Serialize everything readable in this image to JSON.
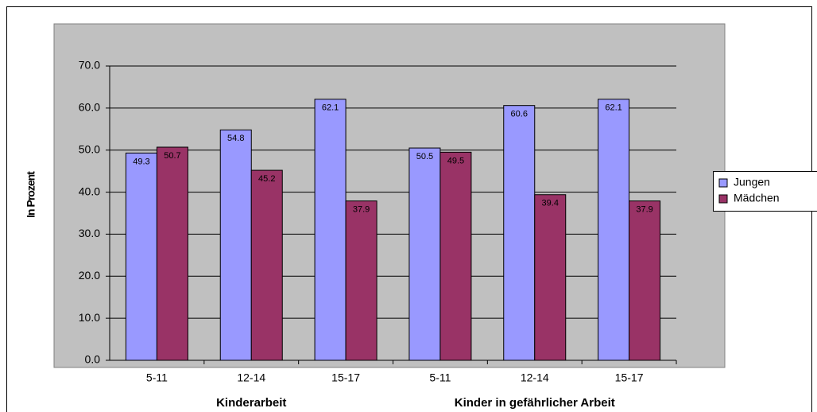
{
  "chart_data": {
    "type": "bar",
    "y_label": "In Prozent",
    "categories": [
      "5-11",
      "12-14",
      "15-17",
      "5-11",
      "12-14",
      "15-17"
    ],
    "group_labels": [
      "Kinderarbeit",
      "Kinder in gefährlicher Arbeit"
    ],
    "series": [
      {
        "name": "Jungen",
        "color": "#9999ff",
        "values": [
          49.3,
          54.8,
          62.1,
          50.5,
          60.6,
          62.1
        ]
      },
      {
        "name": "Mädchen",
        "color": "#993366",
        "values": [
          50.7,
          45.2,
          37.9,
          49.5,
          39.4,
          37.9
        ]
      }
    ],
    "ylim": [
      0,
      70
    ],
    "yticks": [
      {
        "value": 0,
        "label": "0.0"
      },
      {
        "value": 10,
        "label": "10.0"
      },
      {
        "value": 20,
        "label": "20.0"
      },
      {
        "value": 30,
        "label": "30.0"
      },
      {
        "value": 40,
        "label": "40.0"
      },
      {
        "value": 50,
        "label": "50.0"
      },
      {
        "value": 60,
        "label": "60.0"
      },
      {
        "value": 70,
        "label": "70.0"
      }
    ],
    "grid": true,
    "legend": "right"
  }
}
